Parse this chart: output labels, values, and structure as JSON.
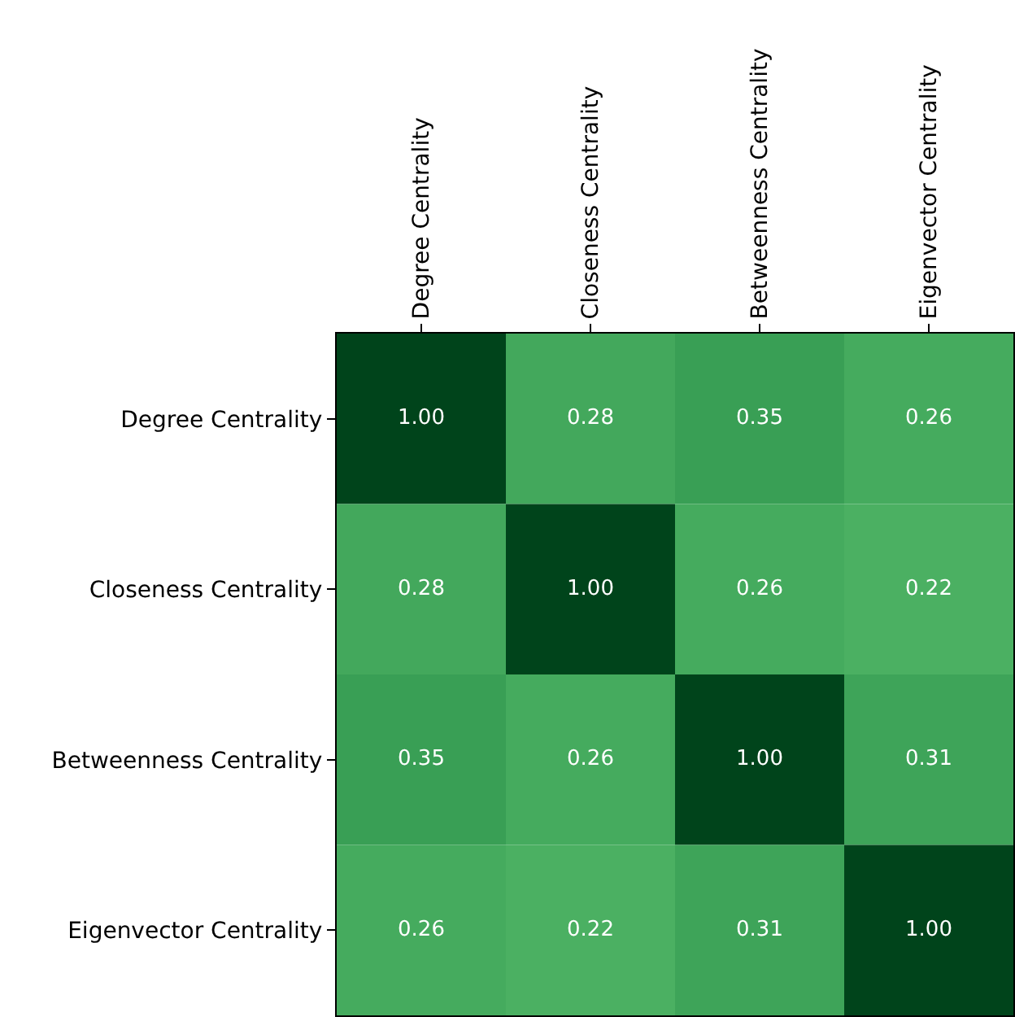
{
  "chart_data": {
    "type": "heatmap",
    "categories": [
      "Degree Centrality",
      "Closeness Centrality",
      "Betweenness Centrality",
      "Eigenvector Centrality"
    ],
    "y_categories": [
      "Degree Centrality",
      "Closeness Centrality",
      "Betweenness Centrality",
      "Eigenvector Centrality"
    ],
    "cells": [
      [
        1.0,
        0.28,
        0.35,
        0.26
      ],
      [
        0.28,
        1.0,
        0.26,
        0.22
      ],
      [
        0.35,
        0.26,
        1.0,
        0.31
      ],
      [
        0.26,
        0.22,
        0.31,
        1.0
      ]
    ],
    "cell_labels": [
      [
        "1.00",
        "0.28",
        "0.35",
        "0.26"
      ],
      [
        "0.28",
        "1.00",
        "0.26",
        "0.22"
      ],
      [
        "0.35",
        "0.26",
        "1.00",
        "0.31"
      ],
      [
        "0.26",
        "0.22",
        "0.31",
        "1.00"
      ]
    ]
  }
}
